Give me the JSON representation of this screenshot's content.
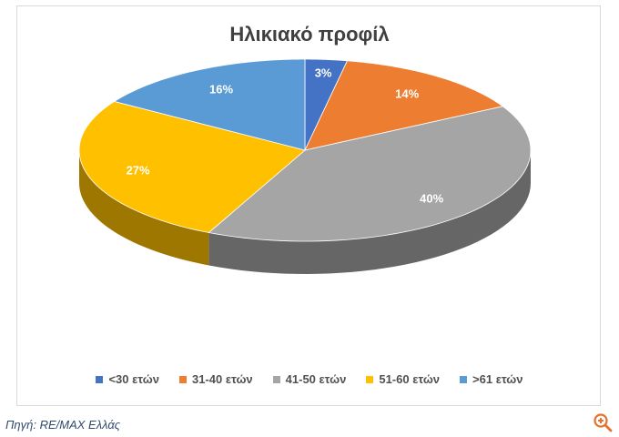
{
  "chart_data": {
    "type": "pie",
    "title": "Ηλικιακό προφίλ",
    "categories": [
      "<30 ετών",
      "31-40 ετών",
      "41-50 ετών",
      "51-60 ετών",
      ">61 ετών"
    ],
    "values": [
      3,
      14,
      40,
      27,
      16
    ],
    "value_labels": [
      "3%",
      "14%",
      "40%",
      "27%",
      "16%"
    ],
    "colors": [
      "#4472c4",
      "#ed7d31",
      "#a5a5a5",
      "#ffc000",
      "#5b9bd5"
    ],
    "legend_position": "bottom",
    "style": "3d"
  },
  "source_text": "Πηγή: RE/MAX Ελλάς",
  "icons": {
    "zoom": "zoom-in-icon"
  }
}
